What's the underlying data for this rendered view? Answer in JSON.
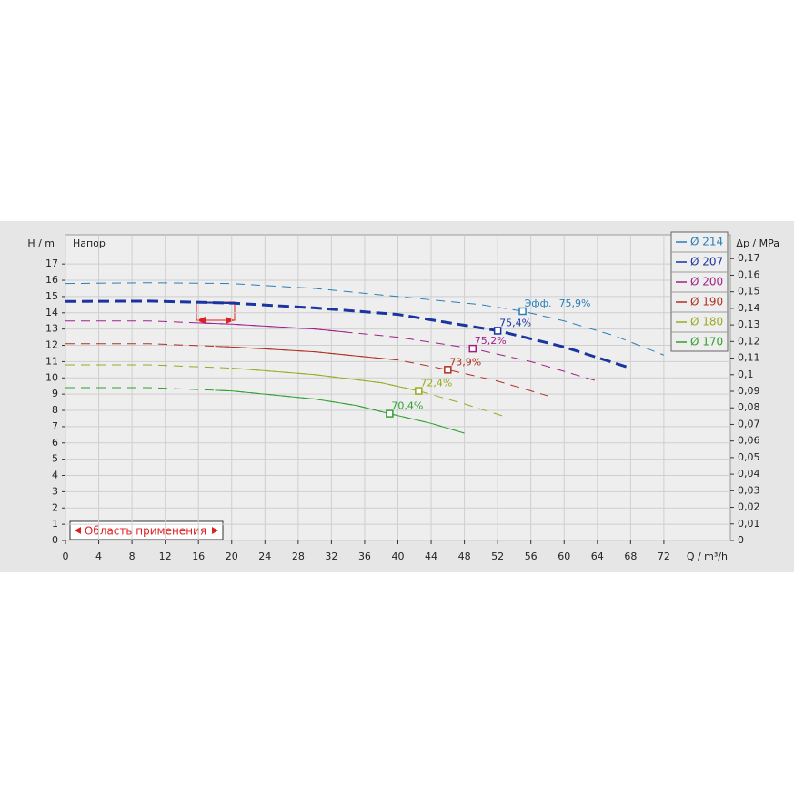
{
  "chart_data": {
    "type": "line",
    "y_label": "H / m",
    "x_label": "Q / m³/h",
    "y2_label": "Δp / MPa",
    "annotation": "Напор",
    "region_label": "Область применения",
    "eff_label": "Эфф.",
    "xlim": [
      0,
      80
    ],
    "ylim": [
      0,
      18.8
    ],
    "y2lim": [
      0,
      0.1844
    ],
    "xticks": [
      0,
      4,
      8,
      12,
      16,
      20,
      24,
      28,
      32,
      36,
      40,
      44,
      48,
      52,
      56,
      60,
      64,
      68,
      72
    ],
    "yticks": [
      0,
      1,
      2,
      3,
      4,
      5,
      6,
      7,
      8,
      9,
      10,
      11,
      12,
      13,
      14,
      15,
      16,
      17
    ],
    "y2ticks": [
      0,
      {
        "value": 0.01,
        "label": "0,01"
      },
      {
        "value": 0.02,
        "label": "0,02"
      },
      {
        "value": 0.03,
        "label": "0,03"
      },
      {
        "value": 0.04,
        "label": "0,04"
      },
      {
        "value": 0.05,
        "label": "0,05"
      },
      {
        "value": 0.06,
        "label": "0,06"
      },
      {
        "value": 0.07,
        "label": "0,07"
      },
      {
        "value": 0.08,
        "label": "0,08"
      },
      {
        "value": 0.09,
        "label": "0,09"
      },
      {
        "value": 0.1,
        "label": "0,1"
      },
      {
        "value": 0.11,
        "label": "0,11"
      },
      {
        "value": 0.12,
        "label": "0,12"
      },
      {
        "value": 0.13,
        "label": "0,13"
      },
      {
        "value": 0.14,
        "label": "0,14"
      },
      {
        "value": 0.15,
        "label": "0,15"
      },
      {
        "value": 0.16,
        "label": "0,16"
      },
      {
        "value": 0.17,
        "label": "0,17"
      }
    ],
    "grid": true,
    "series": [
      {
        "name": "Ø 214",
        "color": "#2a7fb8",
        "width": 1,
        "x": [
          0,
          10,
          20,
          30,
          40,
          50,
          55,
          60,
          66,
          72
        ],
        "values": [
          15.8,
          15.85,
          15.8,
          15.5,
          15.0,
          14.5,
          14.1,
          13.5,
          12.6,
          11.4
        ],
        "bep": {
          "x": 55,
          "y": 14.1,
          "label": "75,9%"
        }
      },
      {
        "name": "Ø 207",
        "color": "#1a34a0",
        "width": 3,
        "x": [
          0,
          10,
          20,
          30,
          40,
          52,
          60,
          68
        ],
        "values": [
          14.7,
          14.72,
          14.6,
          14.3,
          13.9,
          12.9,
          11.9,
          10.6
        ],
        "solid": [
          16,
          20
        ],
        "bep": {
          "x": 52,
          "y": 12.9,
          "label": "75,4%"
        }
      },
      {
        "name": "Ø 200",
        "color": "#a0208a",
        "width": 1,
        "x": [
          0,
          10,
          20,
          30,
          40,
          49,
          56,
          64
        ],
        "values": [
          13.5,
          13.5,
          13.3,
          13.0,
          12.5,
          11.8,
          11.0,
          9.8
        ],
        "solid": [
          16,
          34
        ],
        "bep": {
          "x": 49,
          "y": 11.8,
          "label": "75,2%"
        }
      },
      {
        "name": "Ø 190",
        "color": "#b03020",
        "width": 1,
        "x": [
          0,
          10,
          20,
          30,
          40,
          46,
          52,
          58
        ],
        "values": [
          12.1,
          12.1,
          11.9,
          11.6,
          11.1,
          10.5,
          9.8,
          8.9
        ],
        "solid": [
          18,
          40
        ],
        "bep": {
          "x": 46,
          "y": 10.5,
          "label": "73,9%"
        }
      },
      {
        "name": "Ø 180",
        "color": "#9aaa20",
        "width": 1,
        "x": [
          0,
          10,
          20,
          30,
          38,
          42.5,
          48,
          53
        ],
        "values": [
          10.8,
          10.8,
          10.6,
          10.2,
          9.7,
          9.2,
          8.4,
          7.6
        ],
        "solid": [
          20,
          43
        ],
        "bep": {
          "x": 42.5,
          "y": 9.2,
          "label": "72,4%"
        }
      },
      {
        "name": "Ø 170",
        "color": "#30a030",
        "width": 1,
        "x": [
          0,
          10,
          20,
          30,
          35,
          39,
          44,
          48
        ],
        "values": [
          9.4,
          9.4,
          9.2,
          8.7,
          8.3,
          7.8,
          7.2,
          6.6
        ],
        "solid": [
          18,
          48
        ],
        "bep": {
          "x": 39,
          "y": 7.8,
          "label": "70,4%"
        }
      }
    ]
  }
}
